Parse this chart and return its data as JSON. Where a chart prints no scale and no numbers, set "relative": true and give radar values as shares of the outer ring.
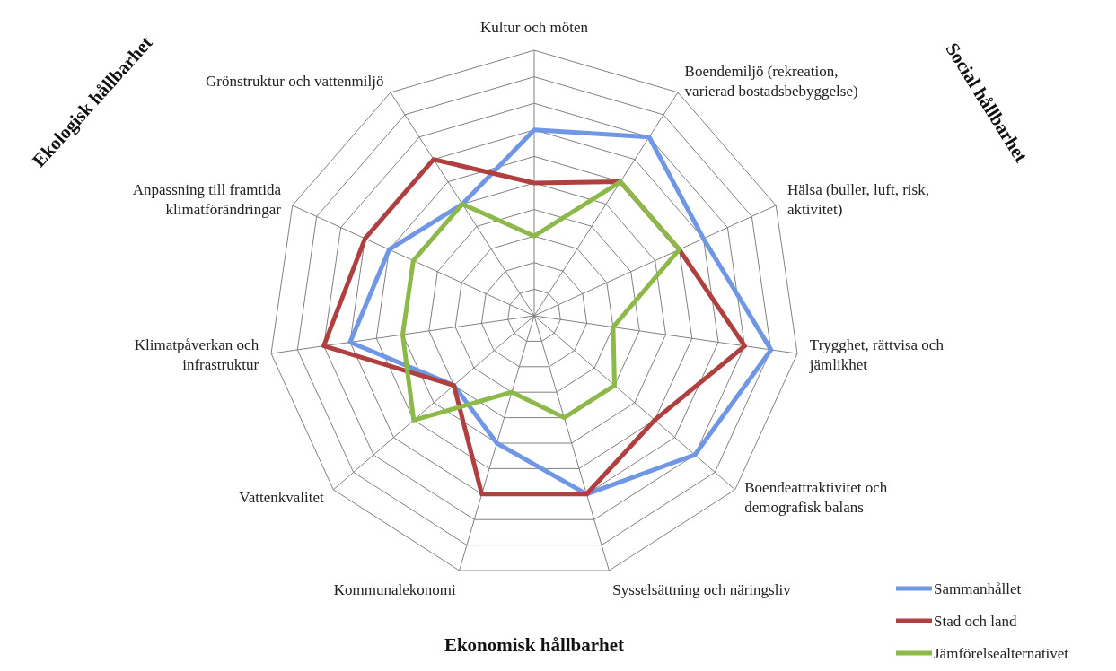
{
  "chart_data": {
    "type": "radar",
    "relative": true,
    "grid": true,
    "legend": "bottom right",
    "line_style": "solid",
    "marker": "none",
    "categories": [
      "Kultur och möten",
      "Boendemiljö (rekreation, varierad bostadsbebyggelse)",
      "Hälsa (buller, luft, risk, aktivitet)",
      "Trygghet, rättvisa och jämlikhet",
      "Boendeattraktivitet och demografisk balans",
      "Sysselsättning och näringsliv",
      "Kommunalekonomi",
      "Vattenkvalitet",
      "Klimatpåverkan och infrastruktur",
      "Anpassning till framtida klimatförändringar",
      "Grönstruktur och vattenmiljö"
    ],
    "series": [
      {
        "name": "Sammanhållet",
        "color": "#6f97e6",
        "values": [
          0.7,
          0.8,
          0.7,
          0.9,
          0.8,
          0.7,
          0.5,
          0.4,
          0.7,
          0.6,
          0.5
        ]
      },
      {
        "name": "Stad och land",
        "color": "#b04040",
        "values": [
          0.5,
          0.6,
          0.6,
          0.8,
          0.6,
          0.7,
          0.7,
          0.4,
          0.8,
          0.7,
          0.7
        ]
      },
      {
        "name": "Jämförelsealternativet",
        "color": "#8db94a",
        "values": [
          0.3,
          0.6,
          0.6,
          0.3,
          0.4,
          0.4,
          0.3,
          0.6,
          0.5,
          0.5,
          0.5
        ]
      }
    ],
    "annotations": [
      "Ekologisk hållbarhet",
      "Social hållbarhet",
      "Ekonomisk hållbarhet"
    ]
  }
}
